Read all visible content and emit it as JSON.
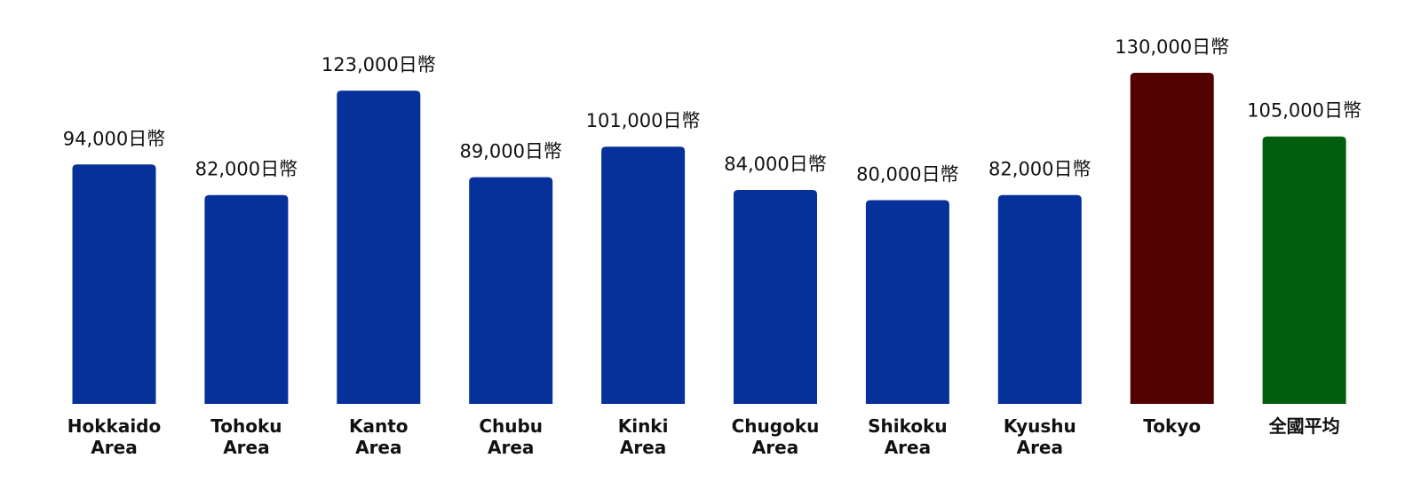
{
  "chart_data": {
    "type": "bar",
    "categories": [
      [
        "Hokkaido",
        "Area"
      ],
      [
        "Tohoku",
        "Area"
      ],
      [
        "Kanto",
        "Area"
      ],
      [
        "Chubu",
        "Area"
      ],
      [
        "Kinki",
        "Area"
      ],
      [
        "Chugoku",
        "Area"
      ],
      [
        "Shikoku",
        "Area"
      ],
      [
        "Kyushu",
        "Area"
      ],
      [
        "Tokyo"
      ],
      [
        "全國平均"
      ]
    ],
    "values": [
      94000,
      82000,
      123000,
      89000,
      101000,
      84000,
      80000,
      82000,
      130000,
      105000
    ],
    "value_labels": [
      "94,000日幣",
      "82,000日幣",
      "123,000日幣",
      "89,000日幣",
      "101,000日幣",
      "84,000日幣",
      "80,000日幣",
      "82,000日幣",
      "130,000日幣",
      "105,000日幣"
    ],
    "colors": [
      "#06309a",
      "#06309a",
      "#06309a",
      "#06309a",
      "#06309a",
      "#06309a",
      "#06309a",
      "#06309a",
      "#530000",
      "#025e0f"
    ],
    "title": "",
    "xlabel": "",
    "ylabel": "",
    "ylim": [
      0,
      130000
    ],
    "grid": false
  }
}
